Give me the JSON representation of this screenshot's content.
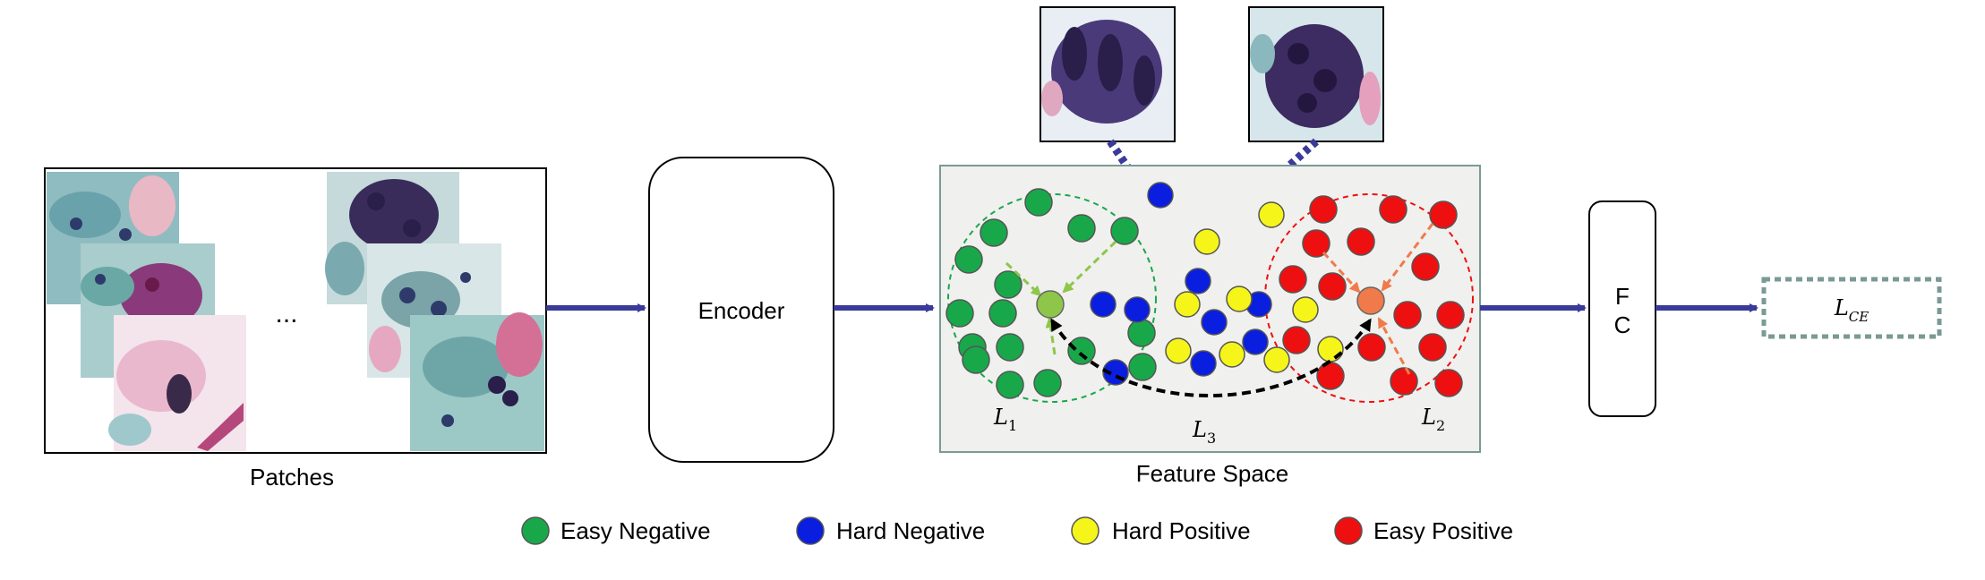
{
  "patches": {
    "label": "Patches",
    "ellipsis": "..."
  },
  "encoder": {
    "label": "Encoder"
  },
  "feature_space": {
    "label": "Feature Space",
    "loss_l1": {
      "base": "L",
      "sub": "1"
    },
    "loss_l2": {
      "base": "L",
      "sub": "2"
    },
    "loss_l3": {
      "base": "L",
      "sub": "3"
    }
  },
  "fc": {
    "line1": "F",
    "line2": "C"
  },
  "output_loss": {
    "base": "L",
    "sub": "CE"
  },
  "legend": [
    {
      "label": "Easy Negative",
      "color": "#18a84a"
    },
    {
      "label": "Hard Negative",
      "color": "#0a1ee0"
    },
    {
      "label": "Hard Positive",
      "color": "#f5f51a"
    },
    {
      "label": "Easy Positive",
      "color": "#ee1010"
    }
  ],
  "colors": {
    "arrow": "#3a3a9a",
    "easy_negative": "#18a84a",
    "hard_negative": "#0a1ee0",
    "hard_positive": "#f5f51a",
    "easy_positive": "#ee1010",
    "negative_centroid": "#8ec64a",
    "positive_centroid": "#f07a4a",
    "panel_bg": "#f0f0ee",
    "panel_border": "#7a9a94",
    "ce_border": "#7a9a94"
  }
}
